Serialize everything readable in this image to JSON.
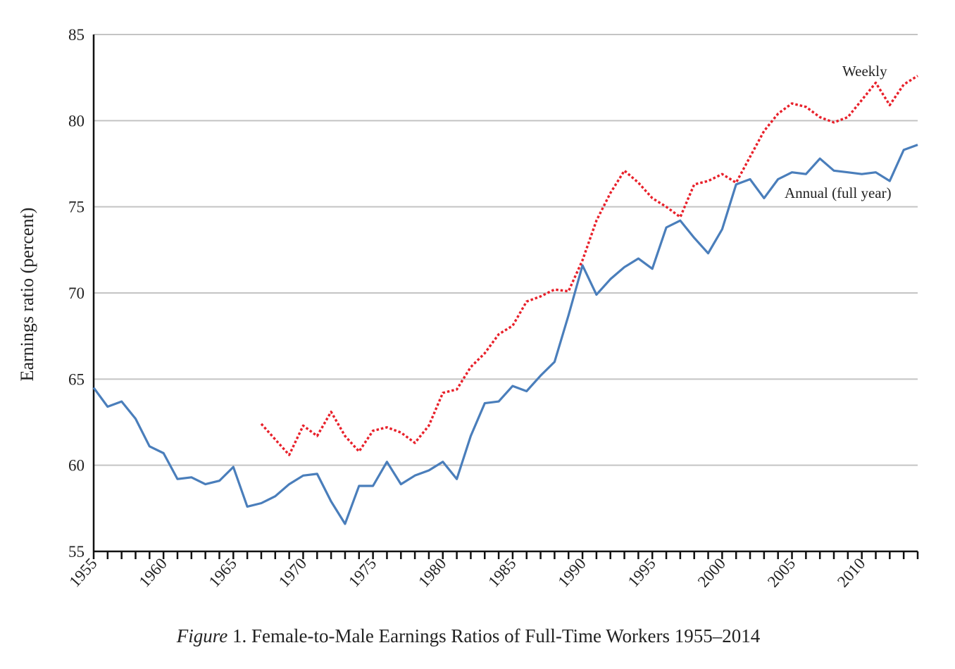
{
  "chart_data": {
    "type": "line",
    "title": "",
    "xlabel": "",
    "ylabel": "Earnings ratio (percent)",
    "xlim": [
      1955,
      2014
    ],
    "ylim": [
      55,
      85
    ],
    "yticks": [
      55,
      60,
      65,
      70,
      75,
      80,
      85
    ],
    "xtick_labels": [
      1955,
      1960,
      1965,
      1970,
      1975,
      1980,
      1985,
      1990,
      1995,
      2000,
      2005,
      2010
    ],
    "grid": "horizontal",
    "series": [
      {
        "name": "Annual (full year)",
        "color": "#4a7ebb",
        "style": "solid",
        "x": [
          1955,
          1956,
          1957,
          1958,
          1959,
          1960,
          1961,
          1962,
          1963,
          1964,
          1965,
          1966,
          1967,
          1968,
          1969,
          1970,
          1971,
          1972,
          1973,
          1974,
          1975,
          1976,
          1977,
          1978,
          1979,
          1980,
          1981,
          1982,
          1983,
          1984,
          1985,
          1986,
          1987,
          1988,
          1989,
          1990,
          1991,
          1992,
          1993,
          1994,
          1995,
          1996,
          1997,
          1998,
          1999,
          2000,
          2001,
          2002,
          2003,
          2004,
          2005,
          2006,
          2007,
          2008,
          2009,
          2010,
          2011,
          2012,
          2013,
          2014
        ],
        "y": [
          64.5,
          63.4,
          63.7,
          62.7,
          61.1,
          60.7,
          59.2,
          59.3,
          58.9,
          59.1,
          59.9,
          57.6,
          57.8,
          58.2,
          58.9,
          59.4,
          59.5,
          57.9,
          56.6,
          58.8,
          58.8,
          60.2,
          58.9,
          59.4,
          59.7,
          60.2,
          59.2,
          61.7,
          63.6,
          63.7,
          64.6,
          64.3,
          65.2,
          66.0,
          68.7,
          71.6,
          69.9,
          70.8,
          71.5,
          72.0,
          71.4,
          73.8,
          74.2,
          73.2,
          72.3,
          73.7,
          76.3,
          76.6,
          75.5,
          76.6,
          77.0,
          76.9,
          77.8,
          77.1,
          77.0,
          76.9,
          77.0,
          76.5,
          78.3,
          78.6
        ]
      },
      {
        "name": "Weekly",
        "color": "#e8202a",
        "style": "dotted",
        "x": [
          1967,
          1968,
          1969,
          1970,
          1971,
          1972,
          1973,
          1974,
          1975,
          1976,
          1977,
          1978,
          1979,
          1980,
          1981,
          1982,
          1983,
          1984,
          1985,
          1986,
          1987,
          1988,
          1989,
          1990,
          1991,
          1992,
          1993,
          1994,
          1995,
          1996,
          1997,
          1998,
          1999,
          2000,
          2001,
          2002,
          2003,
          2004,
          2005,
          2006,
          2007,
          2008,
          2009,
          2010,
          2011,
          2012,
          2013,
          2014
        ],
        "y": [
          62.4,
          61.5,
          60.6,
          62.3,
          61.7,
          63.1,
          61.7,
          60.8,
          62.0,
          62.2,
          61.9,
          61.3,
          62.3,
          64.2,
          64.4,
          65.7,
          66.5,
          67.6,
          68.1,
          69.5,
          69.8,
          70.2,
          70.1,
          71.9,
          74.2,
          75.8,
          77.1,
          76.4,
          75.5,
          75.0,
          74.4,
          76.3,
          76.5,
          76.9,
          76.4,
          77.9,
          79.4,
          80.4,
          81.0,
          80.8,
          80.2,
          79.9,
          80.2,
          81.2,
          82.2,
          80.9,
          82.1,
          82.6
        ]
      }
    ]
  },
  "annotations": {
    "weekly_label": "Weekly",
    "annual_label": "Annual (full year)"
  },
  "caption": {
    "figure_word": "Figure",
    "text": " 1. Female-to-Male Earnings Ratios of Full-Time Workers 1955–2014"
  }
}
